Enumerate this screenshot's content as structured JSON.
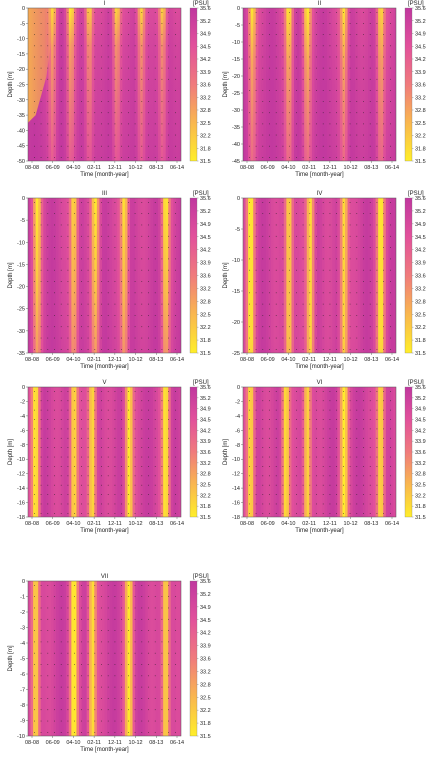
{
  "figure": {
    "time_ticks": [
      "08-08",
      "06-09",
      "04-10",
      "02-11",
      "12-11",
      "10-12",
      "08-13",
      "06-14"
    ],
    "xlabel": "Time [month-year]",
    "ylabel": "Depth [m]",
    "colorbar": {
      "unit": "[PSU]",
      "ticks": [
        "35.6",
        "35.2",
        "34.9",
        "34.5",
        "34.2",
        "33.9",
        "33.6",
        "33.2",
        "32.8",
        "32.5",
        "32.2",
        "31.8",
        "31.5"
      ],
      "colors": [
        "#ffee2a",
        "#f9b74f",
        "#f07b7c",
        "#e2519b",
        "#c0379f"
      ]
    }
  },
  "chart_data": [
    {
      "type": "heatmap",
      "title": "I",
      "xlabel": "Time [month-year]",
      "ylabel": "Depth [m]",
      "x_ticks": [
        "08-08",
        "06-09",
        "04-10",
        "02-11",
        "12-11",
        "10-12",
        "08-13",
        "06-14"
      ],
      "y_ticks": [
        "0",
        "-5",
        "-10",
        "-15",
        "-20",
        "-25",
        "-30",
        "-35",
        "-40",
        "-45",
        "-50"
      ],
      "ylim": [
        -50,
        0
      ],
      "colorbar_label": "[PSU]",
      "clim": [
        31.5,
        35.6
      ],
      "fresh_time_fraction": [
        0.16,
        0.28,
        0.4,
        0.58,
        0.74,
        0.88
      ],
      "fresh_depth_fraction": 0.25,
      "nearshore_low_region": true
    },
    {
      "type": "heatmap",
      "title": "II",
      "xlabel": "Time [month-year]",
      "ylabel": "Depth [m]",
      "x_ticks": [
        "08-08",
        "06-09",
        "04-10",
        "02-11",
        "12-11",
        "10-12",
        "08-13",
        "06-14"
      ],
      "y_ticks": [
        "0",
        "-5",
        "-10",
        "-15",
        "-20",
        "-25",
        "-30",
        "-35",
        "-40",
        "-45"
      ],
      "ylim": [
        -45,
        0
      ],
      "colorbar_label": "[PSU]",
      "clim": [
        31.5,
        35.6
      ],
      "fresh_time_fraction": [
        0.06,
        0.3,
        0.42,
        0.66,
        0.9
      ],
      "fresh_depth_fraction": 0.35
    },
    {
      "type": "heatmap",
      "title": "III",
      "xlabel": "Time [month-year]",
      "ylabel": "Depth [m]",
      "x_ticks": [
        "08-08",
        "06-09",
        "04-10",
        "02-11",
        "12-11",
        "10-12",
        "08-13",
        "06-14"
      ],
      "y_ticks": [
        "0",
        "-5",
        "-10",
        "-15",
        "-20",
        "-25",
        "-30",
        "-35"
      ],
      "ylim": [
        -35,
        0
      ],
      "colorbar_label": "[PSU]",
      "clim": [
        31.5,
        35.6
      ],
      "fresh_time_fraction": [
        0.06,
        0.3,
        0.44,
        0.63,
        0.9
      ],
      "fresh_depth_fraction": 0.6
    },
    {
      "type": "heatmap",
      "title": "IV",
      "xlabel": "Time [month-year]",
      "ylabel": "Depth [m]",
      "x_ticks": [
        "08-08",
        "06-09",
        "04-10",
        "02-11",
        "12-11",
        "10-12",
        "08-13",
        "06-14"
      ],
      "y_ticks": [
        "0",
        "-5",
        "-10",
        "-15",
        "-20",
        "-25"
      ],
      "ylim": [
        -25,
        0
      ],
      "colorbar_label": "[PSU]",
      "clim": [
        31.5,
        35.6
      ],
      "fresh_time_fraction": [
        0.05,
        0.3,
        0.44,
        0.66,
        0.9
      ],
      "fresh_depth_fraction": 0.9
    },
    {
      "type": "heatmap",
      "title": "V",
      "xlabel": "Time [month-year]",
      "ylabel": "Depth [m]",
      "x_ticks": [
        "08-08",
        "06-09",
        "04-10",
        "02-11",
        "12-11",
        "10-12",
        "08-13",
        "06-14"
      ],
      "y_ticks": [
        "0",
        "-2",
        "-4",
        "-6",
        "-8",
        "-10",
        "-12",
        "-14",
        "-16",
        "-18"
      ],
      "ylim": [
        -18,
        0
      ],
      "colorbar_label": "[PSU]",
      "clim": [
        31.5,
        35.6
      ],
      "fresh_time_fraction": [
        0.05,
        0.3,
        0.42,
        0.66,
        0.9
      ],
      "fresh_depth_fraction": 1.0
    },
    {
      "type": "heatmap",
      "title": "VI",
      "xlabel": "Time [month-year]",
      "ylabel": "Depth [m]",
      "x_ticks": [
        "08-08",
        "06-09",
        "04-10",
        "02-11",
        "12-11",
        "10-12",
        "08-13",
        "06-14"
      ],
      "y_ticks": [
        "0",
        "-2",
        "-4",
        "-6",
        "-8",
        "-10",
        "-12",
        "-14",
        "-16",
        "-18"
      ],
      "ylim": [
        -18,
        0
      ],
      "colorbar_label": "[PSU]",
      "clim": [
        31.5,
        35.6
      ],
      "fresh_time_fraction": [
        0.05,
        0.28,
        0.42,
        0.66,
        0.9
      ],
      "fresh_depth_fraction": 1.0
    },
    {
      "type": "heatmap",
      "title": "VII",
      "xlabel": "Time [month-year]",
      "ylabel": "Depth [m]",
      "x_ticks": [
        "08-08",
        "06-09",
        "04-10",
        "02-11",
        "12-11",
        "10-12",
        "08-13",
        "06-14"
      ],
      "y_ticks": [
        "0",
        "-1",
        "-2",
        "-3",
        "-4",
        "-5",
        "-6",
        "-7",
        "-8",
        "-9",
        "-10"
      ],
      "ylim": [
        -10,
        0
      ],
      "colorbar_label": "[PSU]",
      "clim": [
        31.5,
        35.6
      ],
      "fresh_time_fraction": [
        0.05,
        0.3,
        0.42,
        0.66,
        0.9
      ],
      "fresh_depth_fraction": 1.0
    }
  ]
}
